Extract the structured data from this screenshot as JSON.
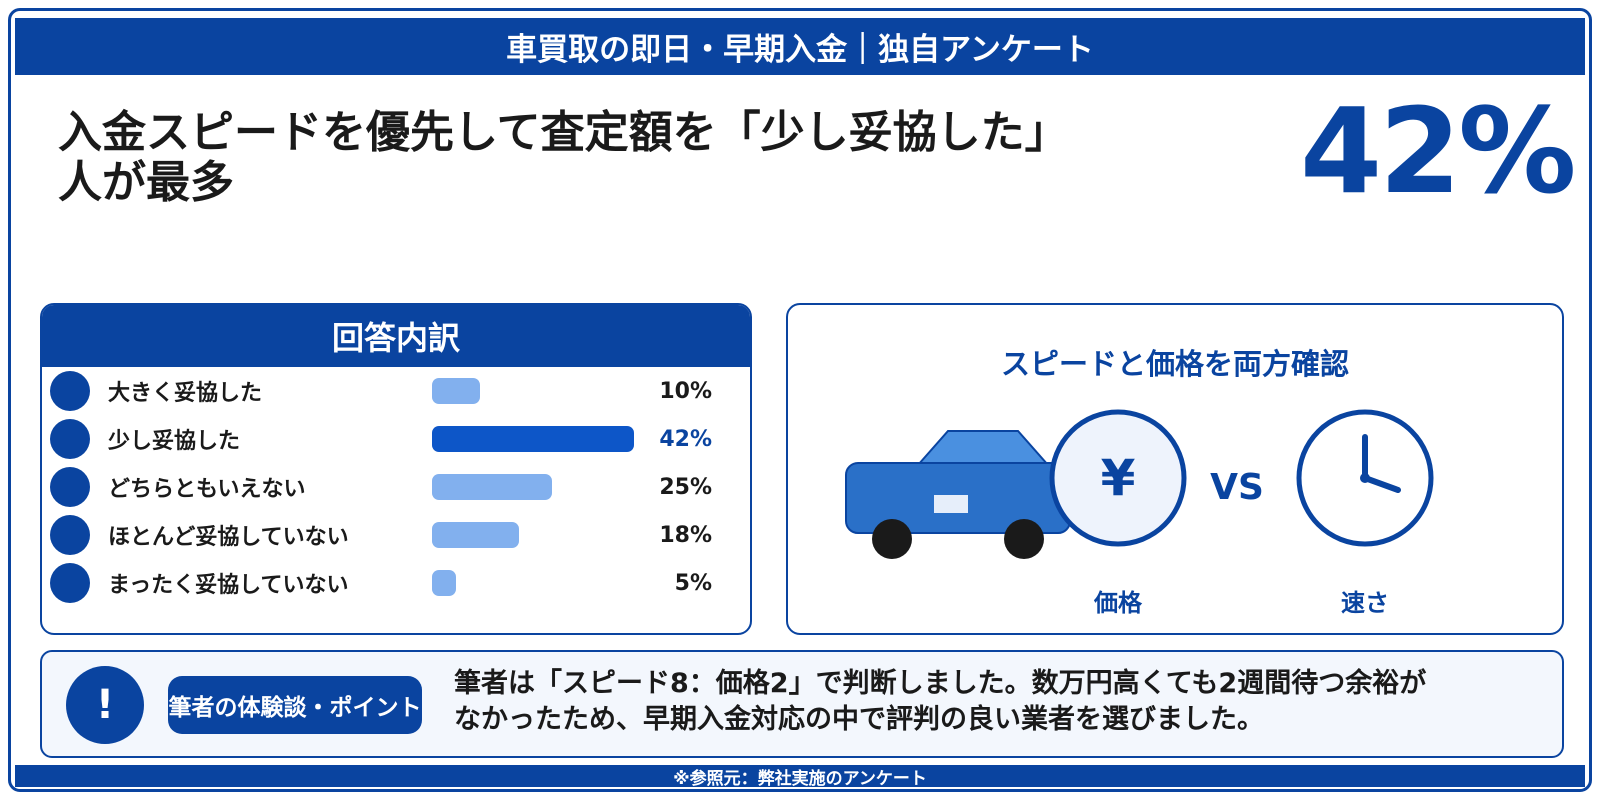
{
  "banner": {
    "title": "車買取の即日・早期入金｜独自アンケート"
  },
  "headline": {
    "line1": "入金スピードを優先して査定額を「少し妥協した」",
    "line2": "人が最多"
  },
  "highlight": {
    "value_text": "42%"
  },
  "colors": {
    "primary": "#0a44a0",
    "bar_highlight": "#0d56c8",
    "bar_default": "#82b0ee",
    "car_body": "#2a70c8",
    "car_roof": "#4a90e0"
  },
  "breakdown": {
    "title": "回答内訳"
  },
  "chart_data": {
    "type": "bar",
    "orientation": "horizontal",
    "categories": [
      "大きく妥協した",
      "少し妥協した",
      "どちらともいえない",
      "ほとんど妥協していない",
      "まったく妥協していない"
    ],
    "values": [
      10,
      42,
      25,
      18,
      5
    ],
    "value_labels": [
      "10%",
      "42%",
      "25%",
      "18%",
      "5%"
    ],
    "highlight_index": 1,
    "xlim": [
      0,
      42
    ]
  },
  "comparison": {
    "title": "スピードと価格を両方確認",
    "yen_symbol": "¥",
    "vs_text": "VS",
    "left_label": "価格",
    "right_label": "速さ",
    "icons": [
      "car-icon",
      "yen-icon",
      "clock-icon"
    ]
  },
  "note": {
    "alert_symbol": "!",
    "tag": "筆者の体験談・ポイント",
    "text_line1": "筆者は「スピード8：価格2」で判断しました。数万円高くても2週間待つ余裕が",
    "text_line2": "なかったため、早期入金対応の中で評判の良い業者を選びました。"
  },
  "footer": {
    "source": "※参照元：弊社実施のアンケート"
  }
}
